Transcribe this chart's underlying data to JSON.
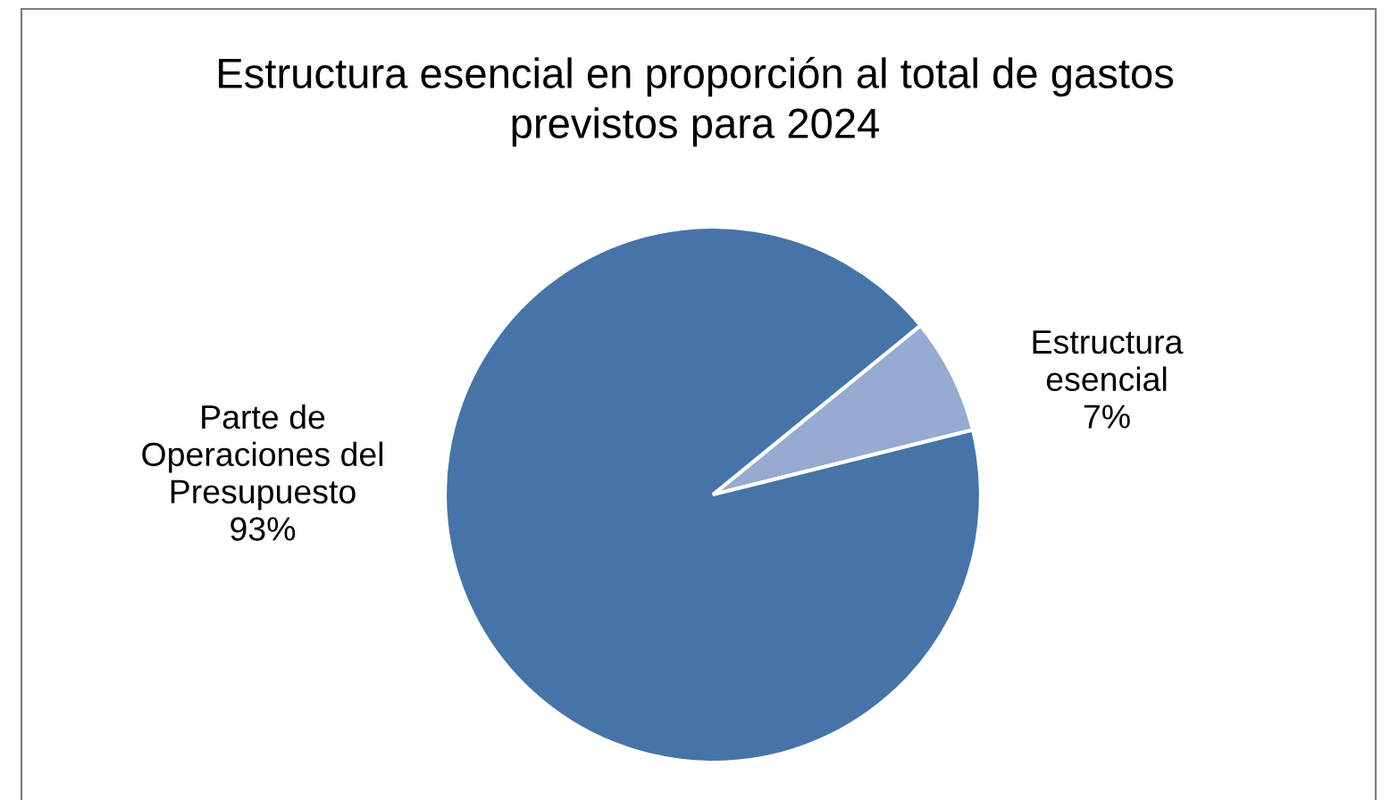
{
  "chart_data": {
    "type": "pie",
    "title": "Estructura esencial en proporción al total de gastos\nprevistos para 2024",
    "categories": [
      "Estructura\nesencial",
      "Parte de\nOperaciones del\nPresupuesto"
    ],
    "values": [
      7,
      93
    ],
    "colors": [
      "#96aad2",
      "#4674a8"
    ],
    "value_labels": [
      "7%",
      "93%"
    ]
  }
}
